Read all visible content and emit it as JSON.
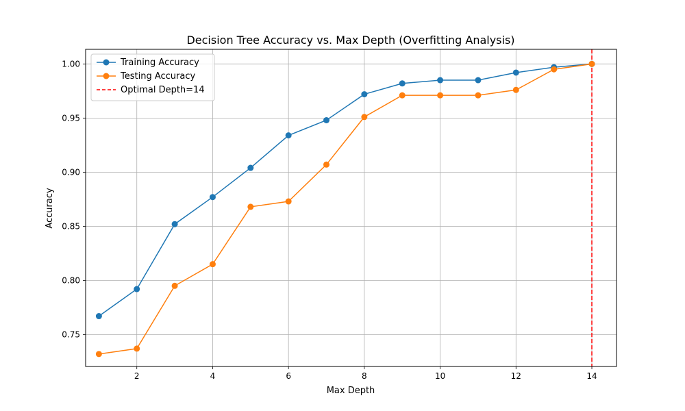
{
  "chart_data": {
    "type": "line",
    "title": "Decision Tree Accuracy vs. Max Depth (Overfitting Analysis)",
    "xlabel": "Max Depth",
    "ylabel": "Accuracy",
    "xlim": [
      0.65,
      14.65
    ],
    "ylim": [
      0.7205,
      1.0135
    ],
    "xticks": [
      2,
      4,
      6,
      8,
      10,
      12,
      14
    ],
    "xtick_labels": [
      "2",
      "4",
      "6",
      "8",
      "10",
      "12",
      "14"
    ],
    "yticks": [
      0.75,
      0.8,
      0.85,
      0.9,
      0.95,
      1.0
    ],
    "ytick_labels": [
      "0.75",
      "0.80",
      "0.85",
      "0.90",
      "0.95",
      "1.00"
    ],
    "grid": true,
    "legend_position": "top-left",
    "x": [
      1,
      2,
      3,
      4,
      5,
      6,
      7,
      8,
      9,
      10,
      11,
      12,
      13,
      14
    ],
    "series": [
      {
        "name": "Training Accuracy",
        "color": "#1f77b4",
        "values": [
          0.767,
          0.792,
          0.852,
          0.877,
          0.904,
          0.934,
          0.948,
          0.972,
          0.982,
          0.985,
          0.985,
          0.992,
          0.997,
          1.0
        ]
      },
      {
        "name": "Testing Accuracy",
        "color": "#ff7f0e",
        "values": [
          0.732,
          0.737,
          0.795,
          0.815,
          0.868,
          0.873,
          0.907,
          0.951,
          0.971,
          0.971,
          0.971,
          0.976,
          0.995,
          1.0
        ]
      }
    ],
    "reference_line": {
      "name": "Optimal Depth=14",
      "x": 14,
      "color": "#ff0000",
      "style": "dashed"
    }
  }
}
